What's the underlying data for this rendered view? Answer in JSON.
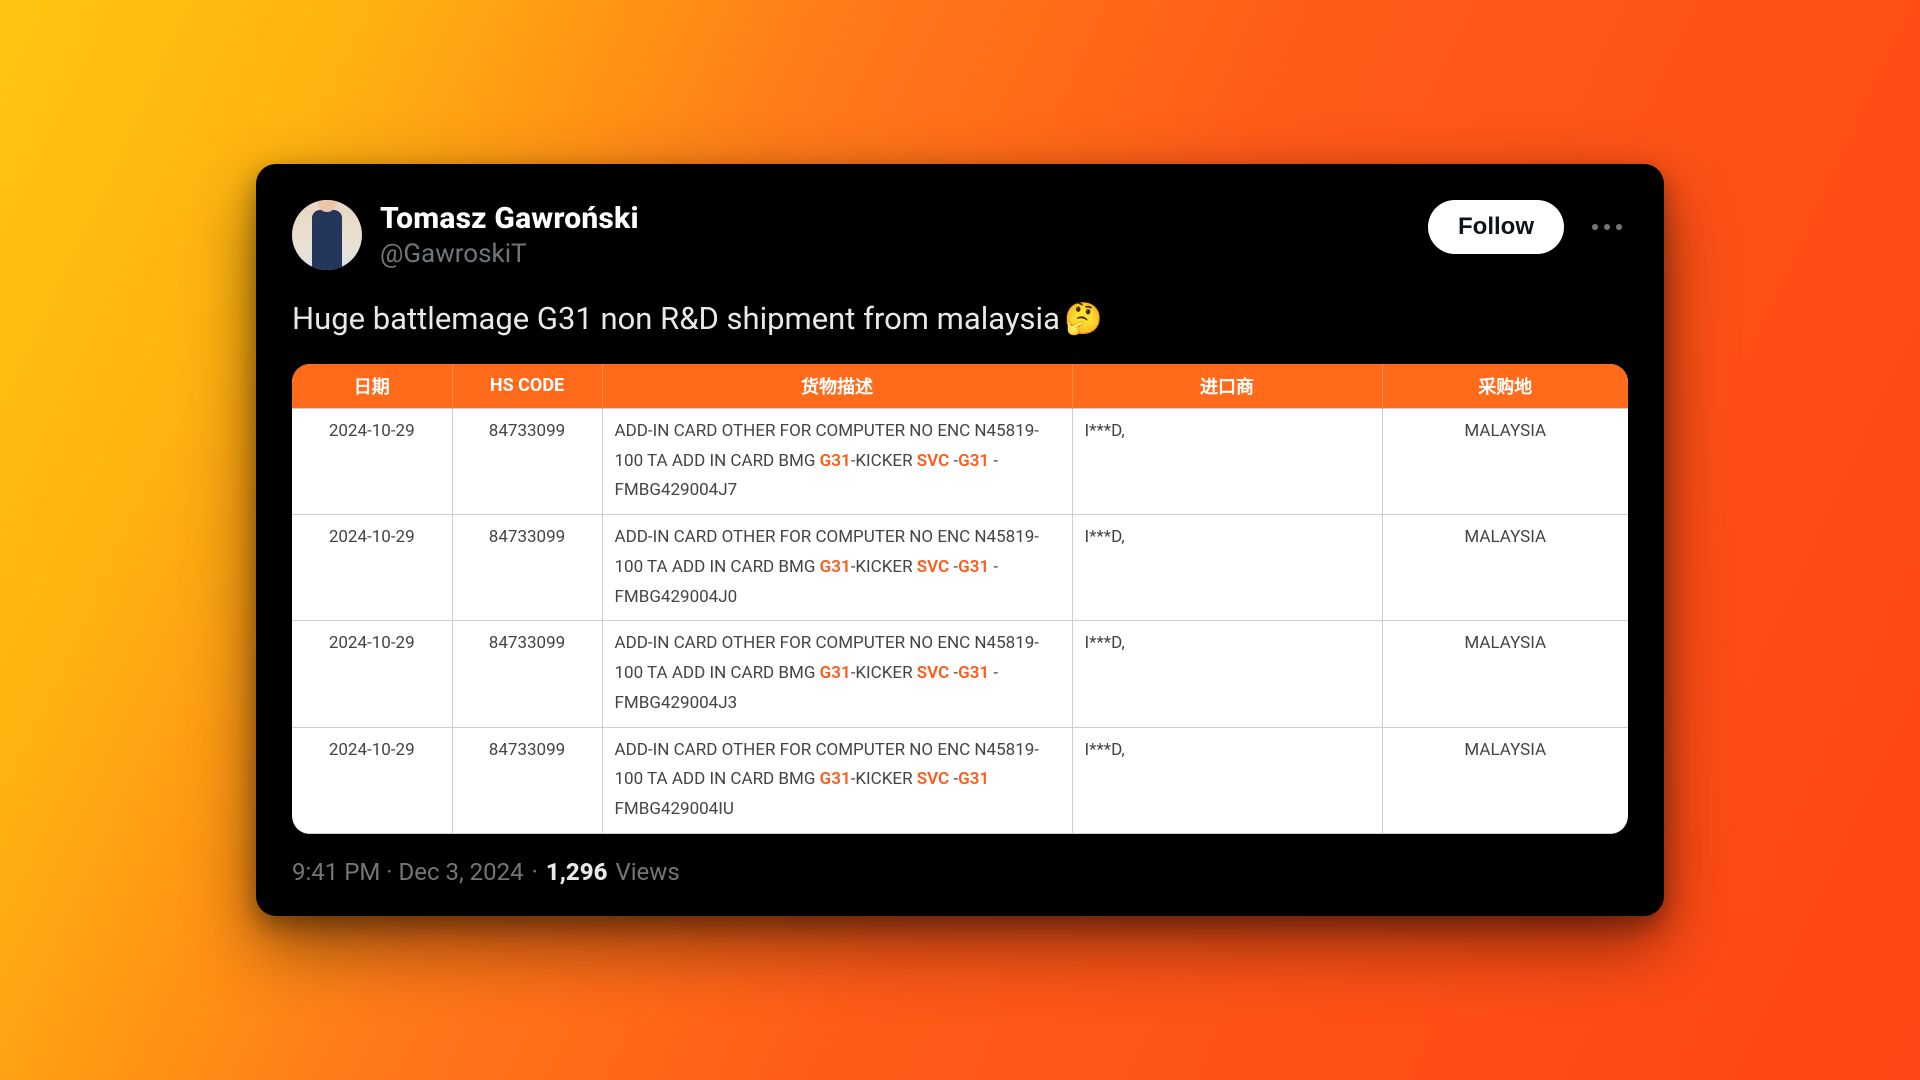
{
  "background": {
    "gradient_from": "#ffc512",
    "gradient_to": "#ff4614"
  },
  "tweet": {
    "author": {
      "display_name": "Tomasz Gawroński",
      "handle": "@GawroskiT"
    },
    "follow_label": "Follow",
    "text": "Huge battlemage G31 non R&D shipment from malaysia",
    "emoji": "🤔",
    "timestamp": "9:41 PM · Dec 3, 2024",
    "views_count": "1,296",
    "views_label": "Views"
  },
  "table": {
    "header_bg": "#ff6b1a",
    "header_color": "#ffffff",
    "highlight_color": "#ff5a18",
    "cell_border": "#cfcfcf",
    "columns": [
      "日期",
      "HS CODE",
      "货物描述",
      "进口商",
      "采购地"
    ],
    "rows": [
      {
        "date": "2024-10-29",
        "hs": "84733099",
        "desc_pre": "ADD-IN CARD OTHER FOR COMPUTER NO ENC N45819-100 TA ADD IN CARD BMG ",
        "desc_hl1": "G31",
        "desc_mid": "-KICKER ",
        "desc_hl2": "SVC",
        "desc_mid2": " -",
        "desc_hl3": "G31",
        "desc_post": " -FMBG429004J7",
        "importer": "I***D,",
        "location": "MALAYSIA"
      },
      {
        "date": "2024-10-29",
        "hs": "84733099",
        "desc_pre": "ADD-IN CARD OTHER FOR COMPUTER NO ENC N45819-100 TA ADD IN CARD BMG ",
        "desc_hl1": "G31",
        "desc_mid": "-KICKER ",
        "desc_hl2": "SVC",
        "desc_mid2": " -",
        "desc_hl3": "G31",
        "desc_post": " -FMBG429004J0",
        "importer": "I***D,",
        "location": "MALAYSIA"
      },
      {
        "date": "2024-10-29",
        "hs": "84733099",
        "desc_pre": "ADD-IN CARD OTHER FOR COMPUTER NO ENC N45819-100 TA ADD IN CARD BMG ",
        "desc_hl1": "G31",
        "desc_mid": "-KICKER ",
        "desc_hl2": "SVC",
        "desc_mid2": " -",
        "desc_hl3": "G31",
        "desc_post": " -FMBG429004J3",
        "importer": "I***D,",
        "location": "MALAYSIA"
      },
      {
        "date": "2024-10-29",
        "hs": "84733099",
        "desc_pre": "ADD-IN CARD OTHER FOR COMPUTER NO ENC N45819-100 TA ADD IN CARD BMG ",
        "desc_hl1": "G31",
        "desc_mid": "-KICKER ",
        "desc_hl2": "SVC",
        "desc_mid2": " -",
        "desc_hl3": "G31",
        "desc_post": " FMBG429004IU",
        "importer": "I***D,",
        "location": "MALAYSIA"
      }
    ]
  }
}
